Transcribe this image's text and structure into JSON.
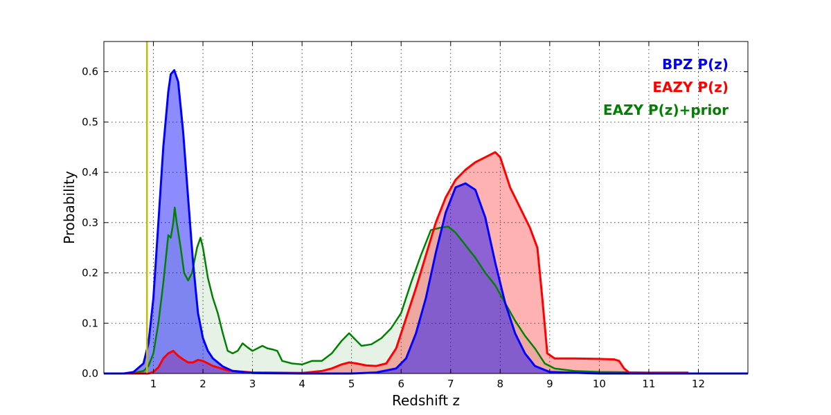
{
  "chart_data": {
    "type": "area",
    "xlabel": "Redshift z",
    "ylabel": "Probability",
    "xlim": [
      0,
      13
    ],
    "ylim": [
      0,
      0.66
    ],
    "grid": true,
    "legend_position": "top-right",
    "x_ticks": [
      "1",
      "2",
      "3",
      "4",
      "5",
      "6",
      "7",
      "8",
      "9",
      "10",
      "11",
      "12"
    ],
    "x_tick_values": [
      1,
      2,
      3,
      4,
      5,
      6,
      7,
      8,
      9,
      10,
      11,
      12
    ],
    "y_ticks": [
      "0.0",
      "0.1",
      "0.2",
      "0.3",
      "0.4",
      "0.5",
      "0.6"
    ],
    "y_tick_values": [
      0,
      0.1,
      0.2,
      0.3,
      0.4,
      0.5,
      0.6
    ],
    "vertical_line": {
      "x": 0.87,
      "color": "#bfbf00"
    },
    "series": [
      {
        "name": "EAZY P(z)+prior",
        "color": "#008000",
        "fill": "#008000",
        "fill_opacity": 0.1,
        "points": [
          [
            0,
            0
          ],
          [
            0.5,
            0
          ],
          [
            0.8,
            0.005
          ],
          [
            0.9,
            0.015
          ],
          [
            1.0,
            0.04
          ],
          [
            1.1,
            0.1
          ],
          [
            1.2,
            0.18
          ],
          [
            1.3,
            0.275
          ],
          [
            1.35,
            0.27
          ],
          [
            1.4,
            0.3
          ],
          [
            1.43,
            0.33
          ],
          [
            1.47,
            0.3
          ],
          [
            1.55,
            0.25
          ],
          [
            1.62,
            0.2
          ],
          [
            1.7,
            0.185
          ],
          [
            1.78,
            0.2
          ],
          [
            1.88,
            0.25
          ],
          [
            1.95,
            0.27
          ],
          [
            2.0,
            0.25
          ],
          [
            2.1,
            0.19
          ],
          [
            2.2,
            0.15
          ],
          [
            2.3,
            0.12
          ],
          [
            2.4,
            0.08
          ],
          [
            2.5,
            0.045
          ],
          [
            2.6,
            0.04
          ],
          [
            2.7,
            0.045
          ],
          [
            2.8,
            0.06
          ],
          [
            2.9,
            0.052
          ],
          [
            3.0,
            0.045
          ],
          [
            3.1,
            0.05
          ],
          [
            3.2,
            0.055
          ],
          [
            3.3,
            0.05
          ],
          [
            3.4,
            0.048
          ],
          [
            3.5,
            0.045
          ],
          [
            3.6,
            0.025
          ],
          [
            3.8,
            0.02
          ],
          [
            4.0,
            0.018
          ],
          [
            4.2,
            0.025
          ],
          [
            4.4,
            0.025
          ],
          [
            4.6,
            0.04
          ],
          [
            4.8,
            0.065
          ],
          [
            4.95,
            0.08
          ],
          [
            5.05,
            0.07
          ],
          [
            5.2,
            0.055
          ],
          [
            5.4,
            0.058
          ],
          [
            5.6,
            0.07
          ],
          [
            5.8,
            0.09
          ],
          [
            6.0,
            0.12
          ],
          [
            6.2,
            0.18
          ],
          [
            6.4,
            0.235
          ],
          [
            6.6,
            0.285
          ],
          [
            6.8,
            0.29
          ],
          [
            6.95,
            0.292
          ],
          [
            7.1,
            0.28
          ],
          [
            7.3,
            0.255
          ],
          [
            7.5,
            0.23
          ],
          [
            7.7,
            0.2
          ],
          [
            7.9,
            0.175
          ],
          [
            8.1,
            0.14
          ],
          [
            8.3,
            0.105
          ],
          [
            8.5,
            0.075
          ],
          [
            8.7,
            0.05
          ],
          [
            8.9,
            0.02
          ],
          [
            9.1,
            0.01
          ],
          [
            9.5,
            0.005
          ],
          [
            10.0,
            0.003
          ],
          [
            11.0,
            0.002
          ],
          [
            11.8,
            0.002
          ]
        ]
      },
      {
        "name": "EAZY P(z)",
        "color": "#ff0000",
        "fill": "#ff0000",
        "fill_opacity": 0.3,
        "points": [
          [
            0,
            0
          ],
          [
            0.9,
            0
          ],
          [
            1.0,
            0.003
          ],
          [
            1.1,
            0.012
          ],
          [
            1.2,
            0.03
          ],
          [
            1.3,
            0.04
          ],
          [
            1.4,
            0.045
          ],
          [
            1.5,
            0.035
          ],
          [
            1.6,
            0.028
          ],
          [
            1.7,
            0.022
          ],
          [
            1.8,
            0.022
          ],
          [
            1.9,
            0.027
          ],
          [
            2.0,
            0.025
          ],
          [
            2.2,
            0.015
          ],
          [
            2.5,
            0.006
          ],
          [
            3.0,
            0.002
          ],
          [
            4.0,
            0.001
          ],
          [
            4.4,
            0.005
          ],
          [
            4.6,
            0.01
          ],
          [
            4.8,
            0.018
          ],
          [
            4.95,
            0.022
          ],
          [
            5.1,
            0.02
          ],
          [
            5.3,
            0.016
          ],
          [
            5.5,
            0.015
          ],
          [
            5.7,
            0.02
          ],
          [
            5.9,
            0.05
          ],
          [
            6.1,
            0.11
          ],
          [
            6.3,
            0.17
          ],
          [
            6.5,
            0.235
          ],
          [
            6.7,
            0.3
          ],
          [
            6.9,
            0.35
          ],
          [
            7.1,
            0.385
          ],
          [
            7.3,
            0.405
          ],
          [
            7.5,
            0.42
          ],
          [
            7.7,
            0.43
          ],
          [
            7.9,
            0.44
          ],
          [
            8.0,
            0.43
          ],
          [
            8.1,
            0.4
          ],
          [
            8.2,
            0.37
          ],
          [
            8.4,
            0.33
          ],
          [
            8.6,
            0.29
          ],
          [
            8.75,
            0.25
          ],
          [
            8.85,
            0.15
          ],
          [
            8.95,
            0.04
          ],
          [
            9.1,
            0.03
          ],
          [
            9.5,
            0.03
          ],
          [
            10.0,
            0.029
          ],
          [
            10.3,
            0.028
          ],
          [
            10.4,
            0.025
          ],
          [
            10.5,
            0.01
          ],
          [
            10.6,
            0.002
          ],
          [
            11.0,
            0.001
          ],
          [
            11.8,
            0.001
          ]
        ]
      },
      {
        "name": "BPZ P(z)",
        "color": "#0000ff",
        "fill": "#0000ff",
        "fill_opacity": 0.45,
        "points": [
          [
            0,
            0
          ],
          [
            0.4,
            0
          ],
          [
            0.6,
            0.003
          ],
          [
            0.8,
            0.02
          ],
          [
            0.9,
            0.06
          ],
          [
            1.0,
            0.15
          ],
          [
            1.1,
            0.3
          ],
          [
            1.2,
            0.45
          ],
          [
            1.3,
            0.56
          ],
          [
            1.35,
            0.595
          ],
          [
            1.42,
            0.603
          ],
          [
            1.5,
            0.58
          ],
          [
            1.6,
            0.48
          ],
          [
            1.7,
            0.35
          ],
          [
            1.8,
            0.22
          ],
          [
            1.9,
            0.12
          ],
          [
            2.0,
            0.07
          ],
          [
            2.1,
            0.045
          ],
          [
            2.2,
            0.03
          ],
          [
            2.4,
            0.014
          ],
          [
            2.6,
            0.005
          ],
          [
            3.0,
            0.001
          ],
          [
            4.0,
            0
          ],
          [
            5.0,
            0
          ],
          [
            5.5,
            0.002
          ],
          [
            5.9,
            0.01
          ],
          [
            6.1,
            0.03
          ],
          [
            6.3,
            0.08
          ],
          [
            6.5,
            0.15
          ],
          [
            6.7,
            0.24
          ],
          [
            6.9,
            0.32
          ],
          [
            7.1,
            0.37
          ],
          [
            7.3,
            0.378
          ],
          [
            7.5,
            0.365
          ],
          [
            7.7,
            0.31
          ],
          [
            7.9,
            0.22
          ],
          [
            8.1,
            0.14
          ],
          [
            8.3,
            0.08
          ],
          [
            8.5,
            0.04
          ],
          [
            8.7,
            0.015
          ],
          [
            9.0,
            0.003
          ],
          [
            10.0,
            0
          ],
          [
            13.0,
            0
          ]
        ]
      }
    ],
    "legend": [
      {
        "label": "BPZ P(z)",
        "color": "#0000ff"
      },
      {
        "label": "EAZY P(z)",
        "color": "#ff0000"
      },
      {
        "label": "EAZY P(z)+prior",
        "color": "#008000"
      }
    ]
  }
}
